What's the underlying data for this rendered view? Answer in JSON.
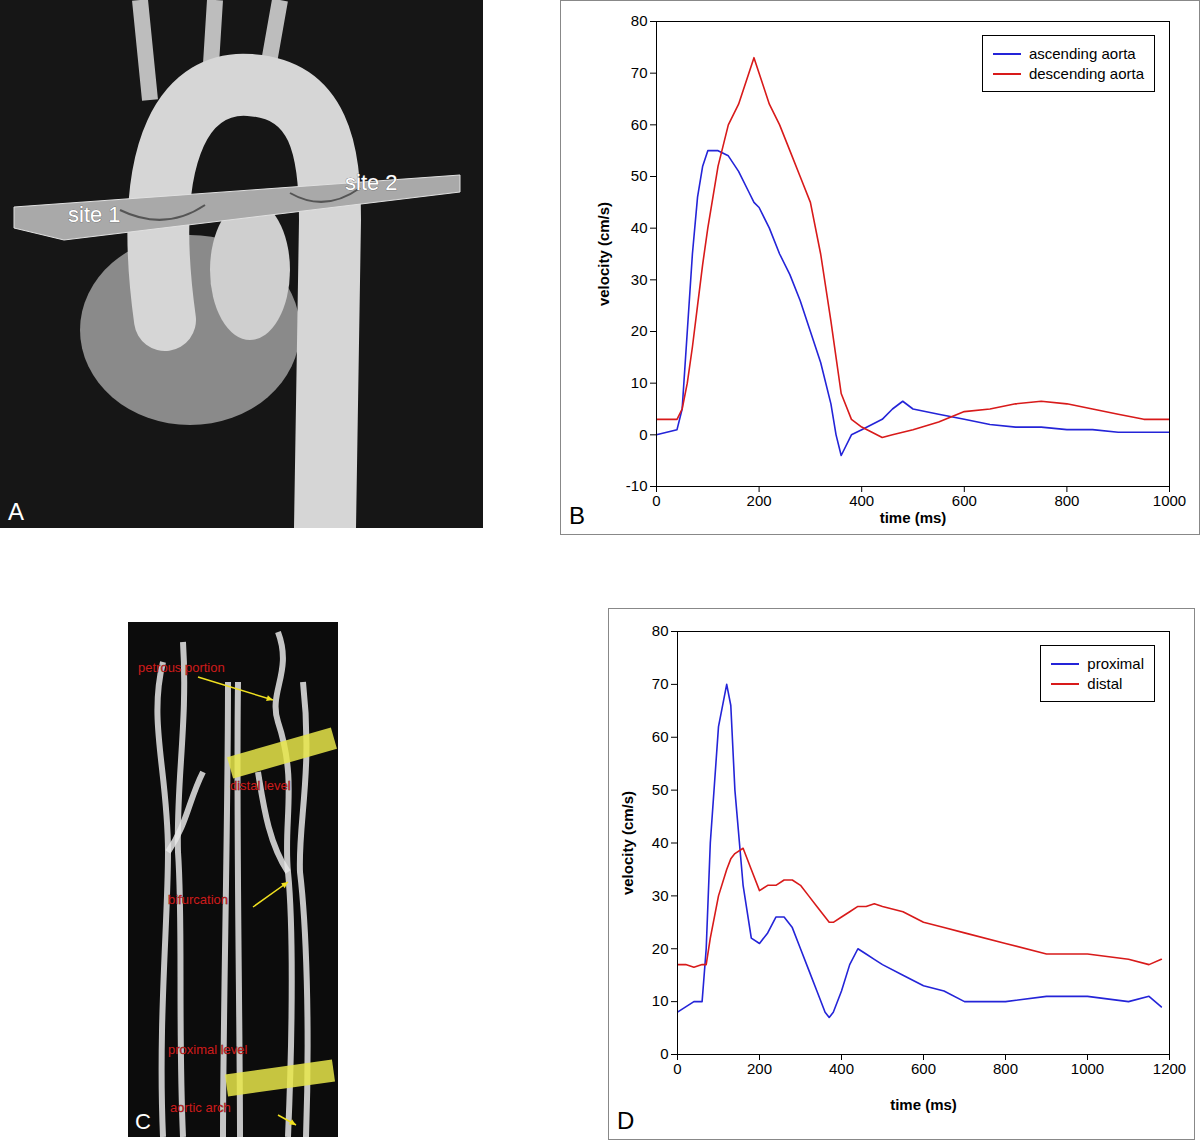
{
  "chart_data": [
    {
      "type": "line",
      "panel": "B",
      "x_label": "time (ms)",
      "y_label": "velocity (cm/s)",
      "xlim": [
        0,
        1000
      ],
      "xticks": [
        0,
        200,
        400,
        600,
        800,
        1000
      ],
      "ylim": [
        -10,
        80
      ],
      "yticks": [
        -10,
        0,
        10,
        20,
        30,
        40,
        50,
        60,
        70,
        80
      ],
      "grid": false,
      "legend": "upper right",
      "x": [
        0,
        20,
        40,
        50,
        60,
        70,
        80,
        90,
        100,
        120,
        140,
        160,
        180,
        190,
        200,
        220,
        240,
        260,
        280,
        300,
        320,
        340,
        350,
        360,
        380,
        400,
        420,
        440,
        460,
        480,
        500,
        550,
        600,
        650,
        700,
        750,
        800,
        850,
        900,
        950,
        1000
      ],
      "series": [
        {
          "name": "ascending aorta",
          "color": "#2424d8",
          "values": [
            0,
            0.5,
            1,
            5,
            20,
            35,
            46,
            52,
            55,
            55,
            54,
            51,
            47,
            45,
            44,
            40,
            35,
            31,
            26,
            20,
            14,
            6,
            0,
            -4,
            0,
            1,
            2,
            3,
            5,
            6.5,
            5,
            4,
            3,
            2,
            1.5,
            1.5,
            1,
            1,
            0.5,
            0.5,
            0.5
          ]
        },
        {
          "name": "descending aorta",
          "color": "#d81a1a",
          "values": [
            3,
            3,
            3,
            5,
            10,
            17,
            25,
            33,
            40,
            52,
            60,
            64,
            70,
            73,
            70,
            64,
            60,
            55,
            50,
            45,
            35,
            22,
            15,
            8,
            3,
            1.5,
            0.5,
            -0.5,
            0,
            0.5,
            1,
            2.5,
            4.5,
            5,
            6,
            6.5,
            6,
            5,
            4,
            3,
            3
          ]
        }
      ]
    },
    {
      "type": "line",
      "panel": "D",
      "x_label": "time (ms)",
      "y_label": "velocity (cm/s)",
      "xlim": [
        0,
        1200
      ],
      "xticks": [
        0,
        200,
        400,
        600,
        800,
        1000,
        1200
      ],
      "ylim": [
        0,
        80
      ],
      "yticks": [
        0,
        10,
        20,
        30,
        40,
        50,
        60,
        70,
        80
      ],
      "grid": false,
      "legend": "upper right",
      "x": [
        0,
        20,
        40,
        60,
        70,
        80,
        100,
        120,
        130,
        140,
        160,
        180,
        200,
        220,
        240,
        260,
        280,
        300,
        320,
        340,
        360,
        370,
        380,
        400,
        420,
        440,
        460,
        480,
        500,
        550,
        600,
        650,
        700,
        800,
        900,
        1000,
        1100,
        1150,
        1180
      ],
      "series": [
        {
          "name": "proximal",
          "color": "#2424d8",
          "values": [
            8,
            9,
            10,
            10,
            20,
            40,
            62,
            70,
            66,
            50,
            32,
            22,
            21,
            23,
            26,
            26,
            24,
            20,
            16,
            12,
            8,
            7,
            8,
            12,
            17,
            20,
            19,
            18,
            17,
            15,
            13,
            12,
            10,
            10,
            11,
            11,
            10,
            11,
            9
          ]
        },
        {
          "name": "distal",
          "color": "#d81a1a",
          "values": [
            17,
            17,
            16.5,
            17,
            17,
            22,
            30,
            35,
            37,
            38,
            39,
            35,
            31,
            32,
            32,
            33,
            33,
            32,
            30,
            28,
            26,
            25,
            25,
            26,
            27,
            28,
            28,
            28.5,
            28,
            27,
            25,
            24,
            23,
            21,
            19,
            19,
            18,
            17,
            18
          ]
        }
      ]
    }
  ],
  "images": [
    {
      "panel": "A",
      "labels": [
        "site 1",
        "site 2"
      ]
    },
    {
      "panel": "C",
      "labels": [
        "petrous portion",
        "distal level",
        "bifurcation",
        "proximal level",
        "aortic arch"
      ]
    }
  ]
}
